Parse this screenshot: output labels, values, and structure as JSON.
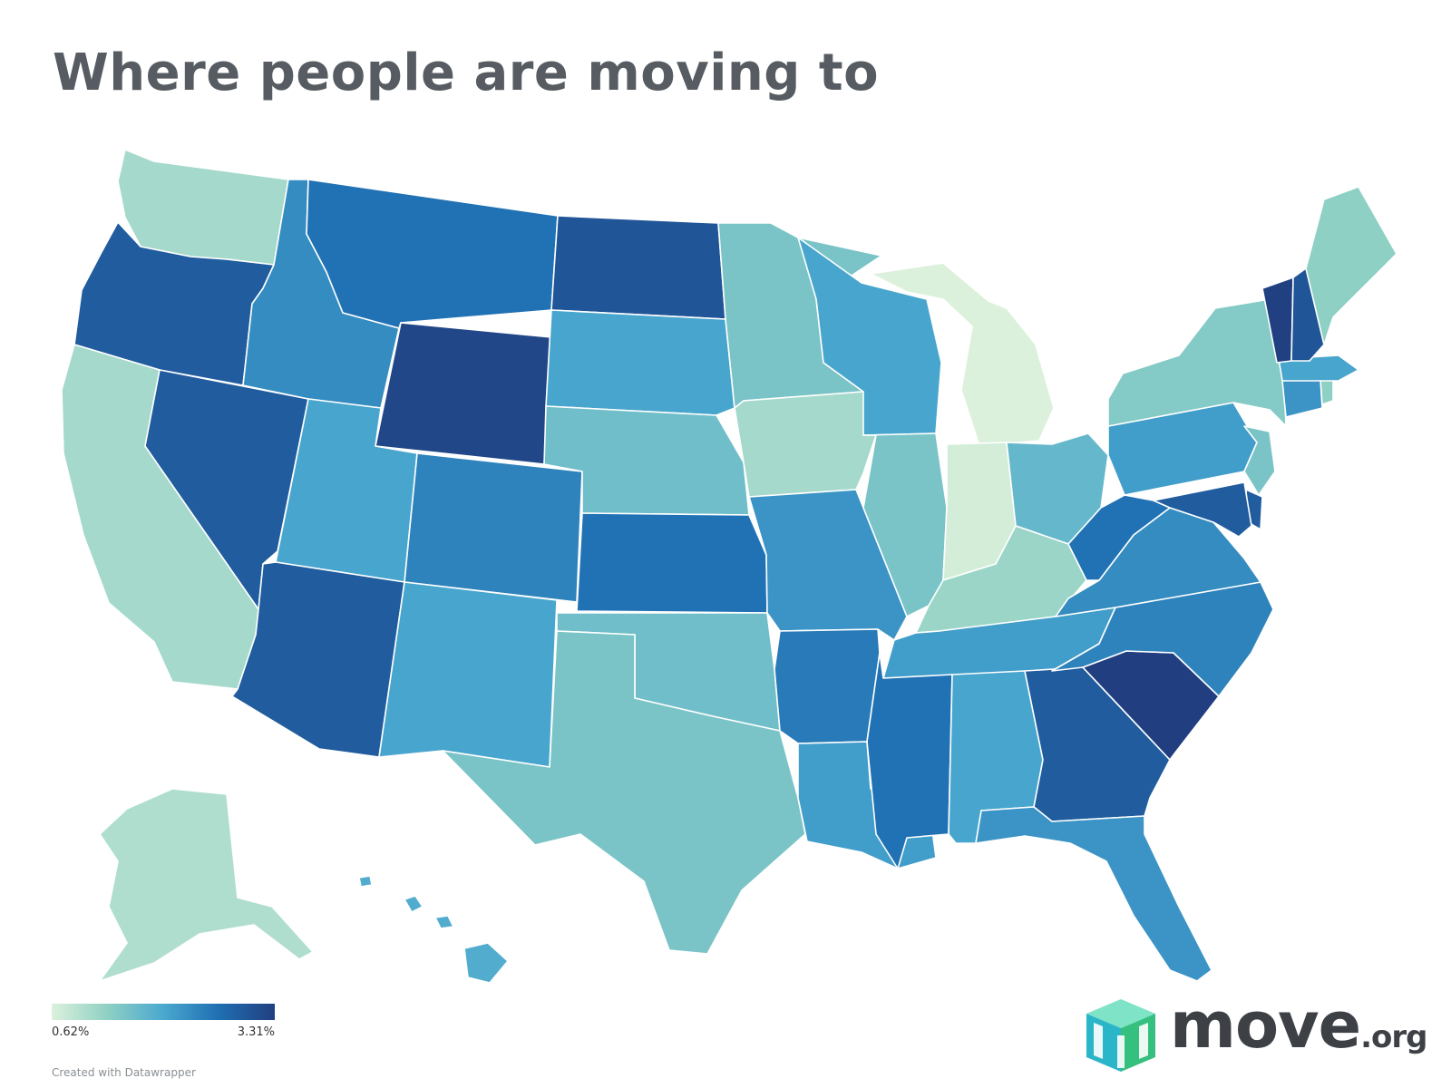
{
  "title": "Where people are moving to",
  "legend": {
    "min_label": "0.62%",
    "max_label": "3.31%",
    "min_value": 0.62,
    "max_value": 3.31,
    "color_stops": [
      "#dcf1dc",
      "#8fd0c4",
      "#4aa8cf",
      "#1f6fb2",
      "#213f80"
    ]
  },
  "credit": "Created with Datawrapper",
  "logo": {
    "word": "move",
    "suffix": ".org"
  },
  "colors": {
    "title": "#565c61",
    "border": "#ffffff",
    "background": "#ffffff"
  },
  "chart_data": {
    "type": "choropleth",
    "title": "Where people are moving to",
    "scale": {
      "min": 0.62,
      "max": 3.31,
      "unit": "%"
    },
    "regions": [
      {
        "id": "WA",
        "value": 1.1
      },
      {
        "id": "OR",
        "value": 2.9
      },
      {
        "id": "CA",
        "value": 1.1
      },
      {
        "id": "NV",
        "value": 2.9
      },
      {
        "id": "ID",
        "value": 2.3
      },
      {
        "id": "MT",
        "value": 2.6
      },
      {
        "id": "WY",
        "value": 3.2
      },
      {
        "id": "UT",
        "value": 2.0
      },
      {
        "id": "AZ",
        "value": 2.9
      },
      {
        "id": "CO",
        "value": 2.4
      },
      {
        "id": "NM",
        "value": 2.0
      },
      {
        "id": "ND",
        "value": 3.0
      },
      {
        "id": "SD",
        "value": 2.0
      },
      {
        "id": "NE",
        "value": 1.6
      },
      {
        "id": "KS",
        "value": 2.6
      },
      {
        "id": "OK",
        "value": 1.6
      },
      {
        "id": "TX",
        "value": 1.5
      },
      {
        "id": "MN",
        "value": 1.5
      },
      {
        "id": "IA",
        "value": 1.1
      },
      {
        "id": "MO",
        "value": 2.2
      },
      {
        "id": "AR",
        "value": 2.5
      },
      {
        "id": "LA",
        "value": 2.1
      },
      {
        "id": "WI",
        "value": 2.0
      },
      {
        "id": "IL",
        "value": 1.5
      },
      {
        "id": "MI",
        "value": 0.62
      },
      {
        "id": "IN",
        "value": 0.7
      },
      {
        "id": "OH",
        "value": 1.7
      },
      {
        "id": "KY",
        "value": 1.2
      },
      {
        "id": "TN",
        "value": 2.1
      },
      {
        "id": "MS",
        "value": 2.6
      },
      {
        "id": "AL",
        "value": 2.0
      },
      {
        "id": "GA",
        "value": 2.9
      },
      {
        "id": "FL",
        "value": 2.2
      },
      {
        "id": "SC",
        "value": 3.31
      },
      {
        "id": "NC",
        "value": 2.4
      },
      {
        "id": "VA",
        "value": 2.3
      },
      {
        "id": "WV",
        "value": 2.6
      },
      {
        "id": "PA",
        "value": 2.1
      },
      {
        "id": "NY",
        "value": 1.4
      },
      {
        "id": "NJ",
        "value": 1.5
      },
      {
        "id": "DE",
        "value": 2.9
      },
      {
        "id": "MD",
        "value": 2.9
      },
      {
        "id": "CT",
        "value": 2.2
      },
      {
        "id": "RI",
        "value": 1.3
      },
      {
        "id": "MA",
        "value": 2.0
      },
      {
        "id": "VT",
        "value": 3.3
      },
      {
        "id": "NH",
        "value": 3.0
      },
      {
        "id": "ME",
        "value": 1.3
      },
      {
        "id": "AK",
        "value": 1.0
      },
      {
        "id": "HI",
        "value": 1.9
      }
    ]
  }
}
